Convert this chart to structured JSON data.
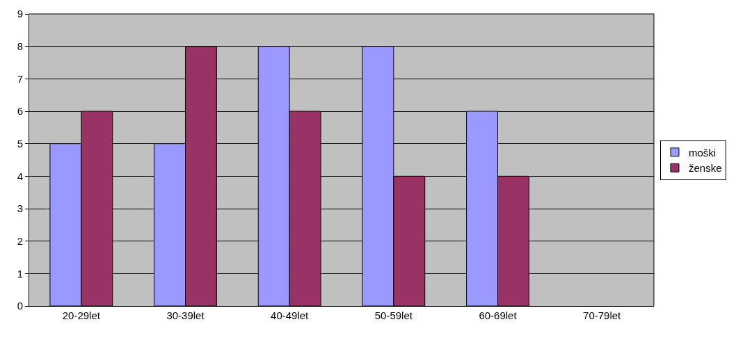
{
  "chart_data": {
    "type": "bar",
    "categories": [
      "20-29let",
      "30-39let",
      "40-49let",
      "50-59let",
      "60-69let",
      "70-79let"
    ],
    "series": [
      {
        "name": "moški",
        "color": "#9999ff",
        "values": [
          5,
          5,
          8,
          8,
          6,
          null
        ]
      },
      {
        "name": "ženske",
        "color": "#993366",
        "values": [
          6,
          8,
          6,
          4,
          4,
          null
        ]
      }
    ],
    "ylim": [
      0,
      9
    ],
    "yticks": [
      0,
      1,
      2,
      3,
      4,
      5,
      6,
      7,
      8,
      9
    ],
    "grid": "y",
    "legend": "right"
  }
}
